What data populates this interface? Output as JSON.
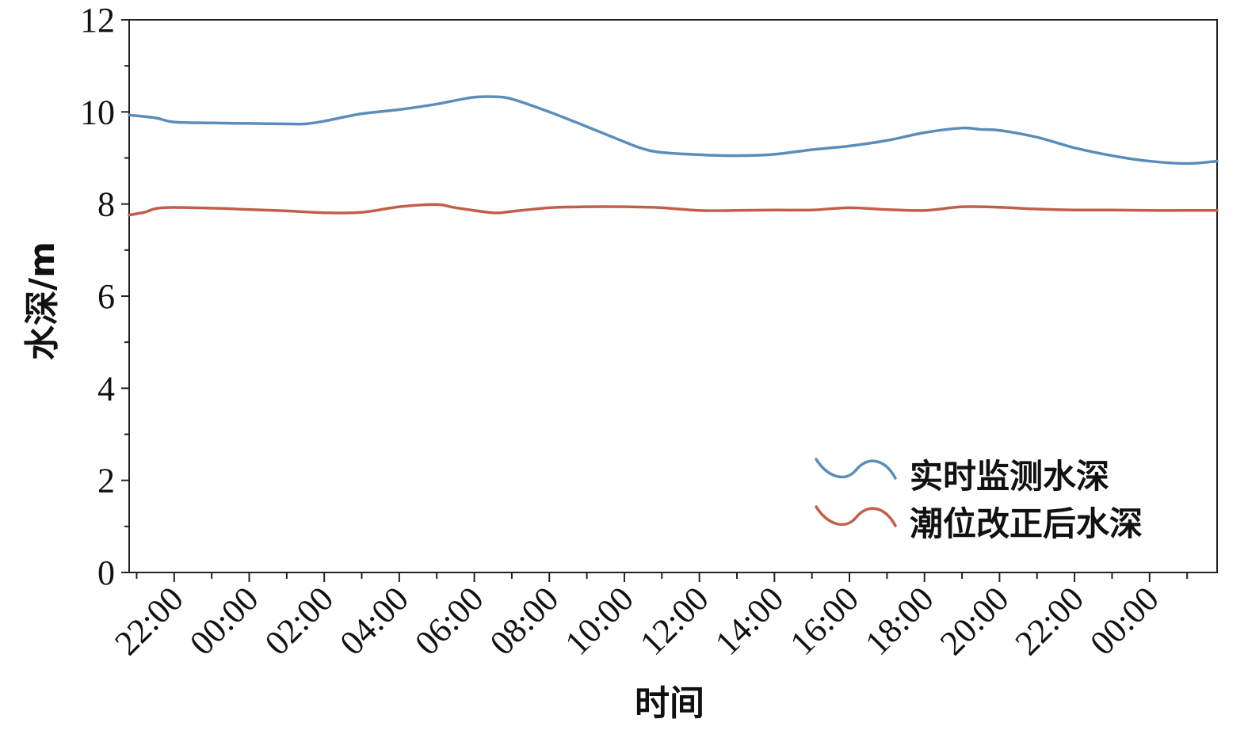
{
  "chart_data": {
    "type": "line",
    "xlabel": "时间",
    "ylabel": "水深/m",
    "ylim": [
      0,
      12
    ],
    "y_ticks": [
      "0",
      "2",
      "4",
      "6",
      "8",
      "10",
      "12"
    ],
    "x_range_hours": [
      -3.2,
      25.8
    ],
    "x_tick_labels": [
      "22:00",
      "00:00",
      "02:00",
      "04:00",
      "06:00",
      "08:00",
      "10:00",
      "12:00",
      "14:00",
      "16:00",
      "18:00",
      "20:00",
      "22:00",
      "00:00"
    ],
    "x_tick_hours": [
      -2,
      0,
      2,
      4,
      6,
      8,
      10,
      12,
      14,
      16,
      18,
      20,
      22,
      24
    ],
    "grid": false,
    "legend_position": "bottom-right",
    "series": [
      {
        "name": "实时监测水深",
        "color": "#5b8db8",
        "x": [
          -3.2,
          -2.5,
          -2.0,
          -1.0,
          0.0,
          1.0,
          1.5,
          2.0,
          3.0,
          4.0,
          5.0,
          5.5,
          6.0,
          6.5,
          7.0,
          8.0,
          9.0,
          10.0,
          10.5,
          11.0,
          12.0,
          13.0,
          14.0,
          15.0,
          16.0,
          17.0,
          18.0,
          19.0,
          19.5,
          20.0,
          21.0,
          22.0,
          23.0,
          24.0,
          25.0,
          25.8
        ],
        "y": [
          9.93,
          9.87,
          9.78,
          9.76,
          9.75,
          9.74,
          9.74,
          9.8,
          9.96,
          10.05,
          10.17,
          10.25,
          10.32,
          10.33,
          10.28,
          10.0,
          9.68,
          9.35,
          9.2,
          9.12,
          9.07,
          9.05,
          9.08,
          9.18,
          9.26,
          9.38,
          9.55,
          9.65,
          9.62,
          9.6,
          9.45,
          9.22,
          9.05,
          8.93,
          8.88,
          8.93
        ]
      },
      {
        "name": "潮位改正后水深",
        "color": "#c0604a",
        "x": [
          -3.2,
          -2.8,
          -2.3,
          -1.0,
          0.0,
          1.0,
          2.0,
          3.0,
          4.0,
          5.0,
          5.5,
          6.5,
          7.0,
          8.0,
          9.0,
          10.0,
          11.0,
          12.0,
          13.0,
          14.0,
          15.0,
          16.0,
          17.0,
          18.0,
          19.0,
          20.0,
          21.0,
          22.0,
          23.0,
          24.0,
          25.0,
          25.8
        ],
        "y": [
          7.76,
          7.82,
          7.92,
          7.91,
          7.88,
          7.85,
          7.81,
          7.82,
          7.94,
          7.99,
          7.92,
          7.81,
          7.84,
          7.92,
          7.94,
          7.94,
          7.92,
          7.86,
          7.86,
          7.87,
          7.87,
          7.92,
          7.88,
          7.86,
          7.94,
          7.93,
          7.89,
          7.87,
          7.87,
          7.86,
          7.86,
          7.86
        ]
      }
    ]
  }
}
